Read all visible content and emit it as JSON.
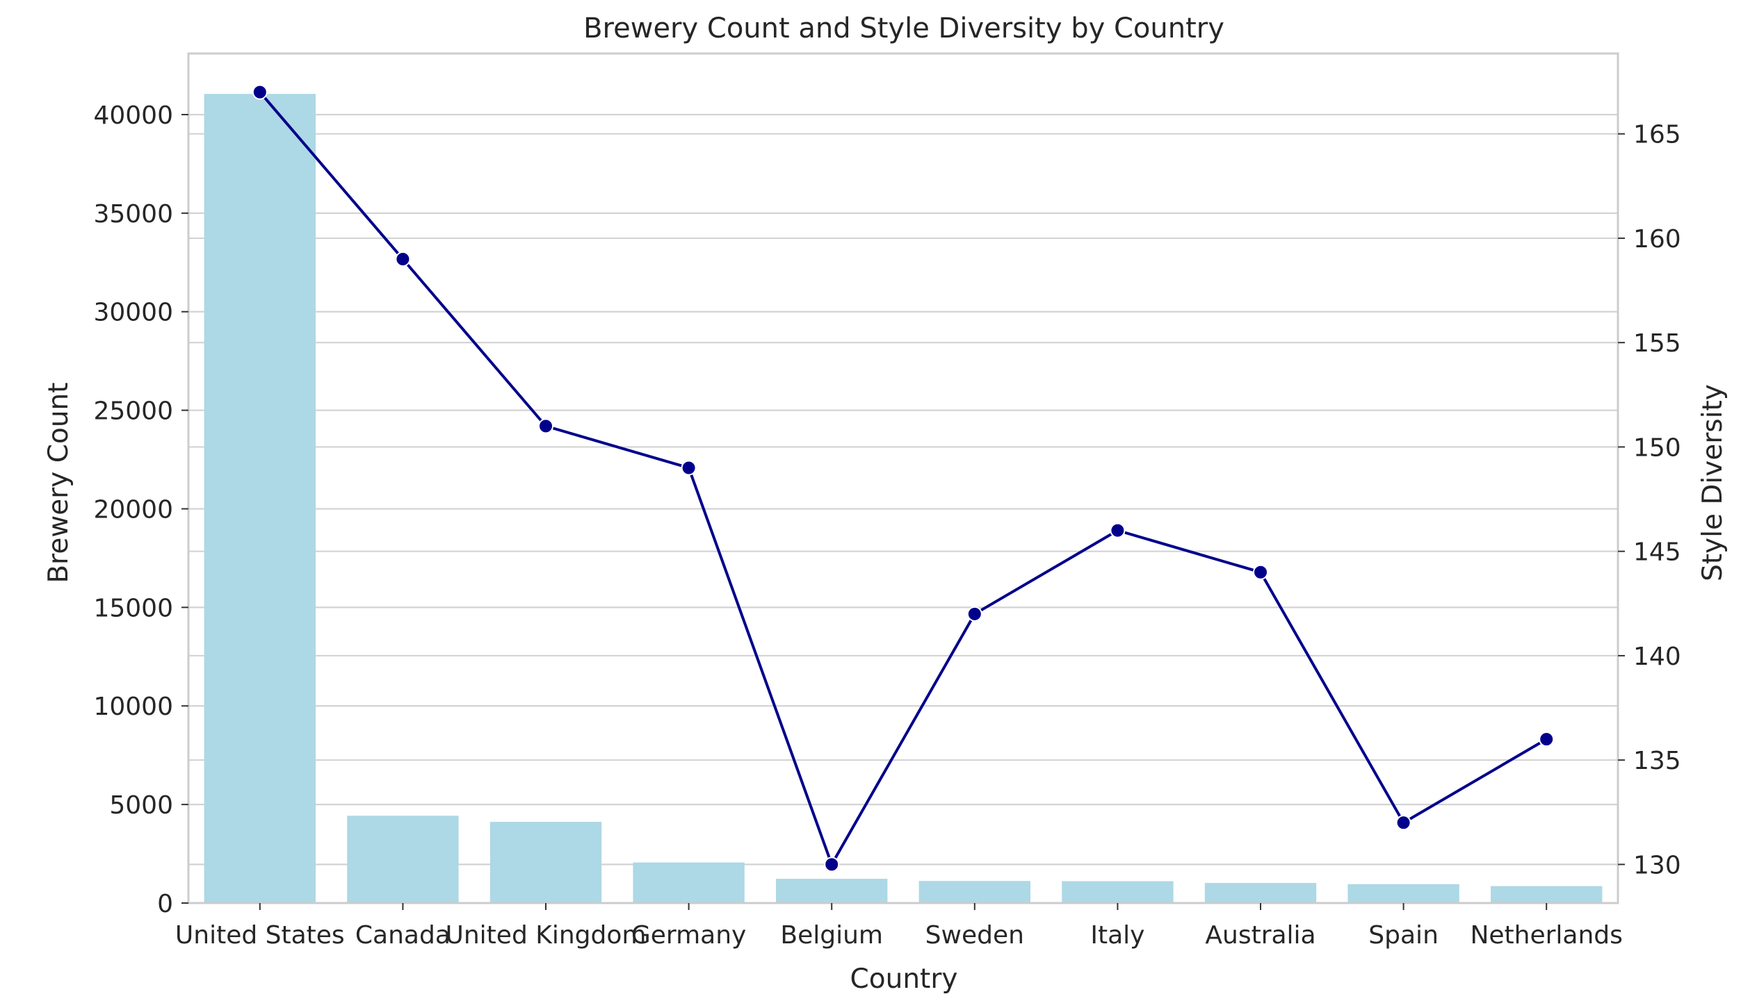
{
  "chart_data": {
    "type": "bar+line",
    "title": "Brewery Count and Style Diversity by Country",
    "xlabel": "Country",
    "ylabel_left": "Brewery Count",
    "ylabel_right": "Style Diversity",
    "categories": [
      "United States",
      "Canada",
      "United Kingdom",
      "Germany",
      "Belgium",
      "Sweden",
      "Italy",
      "Australia",
      "Spain",
      "Netherlands"
    ],
    "series": [
      {
        "type": "bar",
        "axis": "left",
        "color": "#add8e6",
        "values": [
          41050,
          4430,
          4120,
          2060,
          1230,
          1120,
          1110,
          1020,
          960,
          860
        ]
      },
      {
        "type": "line",
        "axis": "right",
        "color": "#00008b",
        "marker": "circle",
        "values": [
          167,
          159,
          151,
          149,
          130,
          142,
          146,
          144,
          132,
          136
        ]
      }
    ],
    "y_left": {
      "lim": [
        0,
        43100
      ],
      "ticks": [
        0,
        5000,
        10000,
        15000,
        20000,
        25000,
        30000,
        35000,
        40000
      ],
      "tick_labels": [
        "0",
        "5000",
        "10000",
        "15000",
        "20000",
        "25000",
        "30000",
        "35000",
        "40000"
      ]
    },
    "y_right": {
      "lim": [
        128.15,
        168.85
      ],
      "ticks": [
        130,
        135,
        140,
        145,
        150,
        155,
        160,
        165
      ],
      "tick_labels": [
        "130",
        "135",
        "140",
        "145",
        "150",
        "155",
        "160",
        "165"
      ]
    },
    "grid": true
  }
}
